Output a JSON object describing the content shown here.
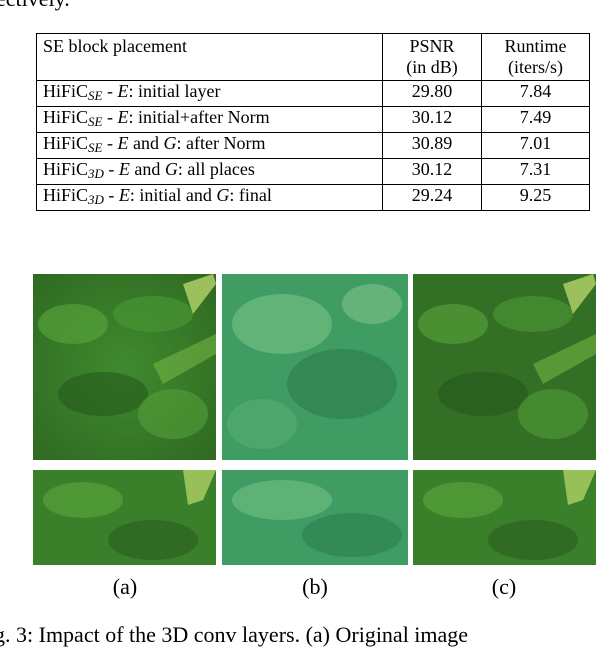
{
  "fragments": {
    "top": "ectively.",
    "bottom": "g. 3: Impact of the 3D conv layers. (a) Original image"
  },
  "table": {
    "header": {
      "placement": "SE block placement",
      "psnr_line1": "PSNR",
      "psnr_line2": "(in dB)",
      "runtime_line1": "Runtime",
      "runtime_line2": "(iters/s)"
    },
    "rows": [
      {
        "model": "HiFiC",
        "sub": "SE",
        "sep": " - ",
        "e": "E",
        "mid": "",
        "g": "",
        "rest": ": initial layer",
        "psnr": "29.80",
        "runtime": "7.84"
      },
      {
        "model": "HiFiC",
        "sub": "SE",
        "sep": " - ",
        "e": "E",
        "mid": "",
        "g": "",
        "rest": ": initial+after Norm",
        "psnr": "30.12",
        "runtime": "7.49"
      },
      {
        "model": "HiFiC",
        "sub": "SE",
        "sep": " - ",
        "e": "E",
        "mid": " and ",
        "g": "G",
        "rest": ": after Norm",
        "psnr": "30.89",
        "runtime": "7.01"
      },
      {
        "model": "HiFiC",
        "sub": "3D",
        "sep": " - ",
        "e": "E",
        "mid": " and ",
        "g": "G",
        "rest": ": all places",
        "psnr": "30.12",
        "runtime": "7.31"
      },
      {
        "model": "HiFiC",
        "sub": "3D",
        "sep": " - ",
        "e": "E",
        "mid": ": initial and ",
        "g": "G",
        "rest": ": final",
        "psnr": "29.24",
        "runtime": "9.25"
      }
    ]
  },
  "captions": [
    "(a)",
    "(b)",
    "(c)"
  ],
  "colors": {
    "grass_dark": "#2f6a22",
    "grass_mid": "#4b9a35",
    "grass_light": "#7fbf4a",
    "teal_dark": "#2c7a4e",
    "teal_mid": "#3f9d63",
    "teal_light": "#79c287"
  }
}
